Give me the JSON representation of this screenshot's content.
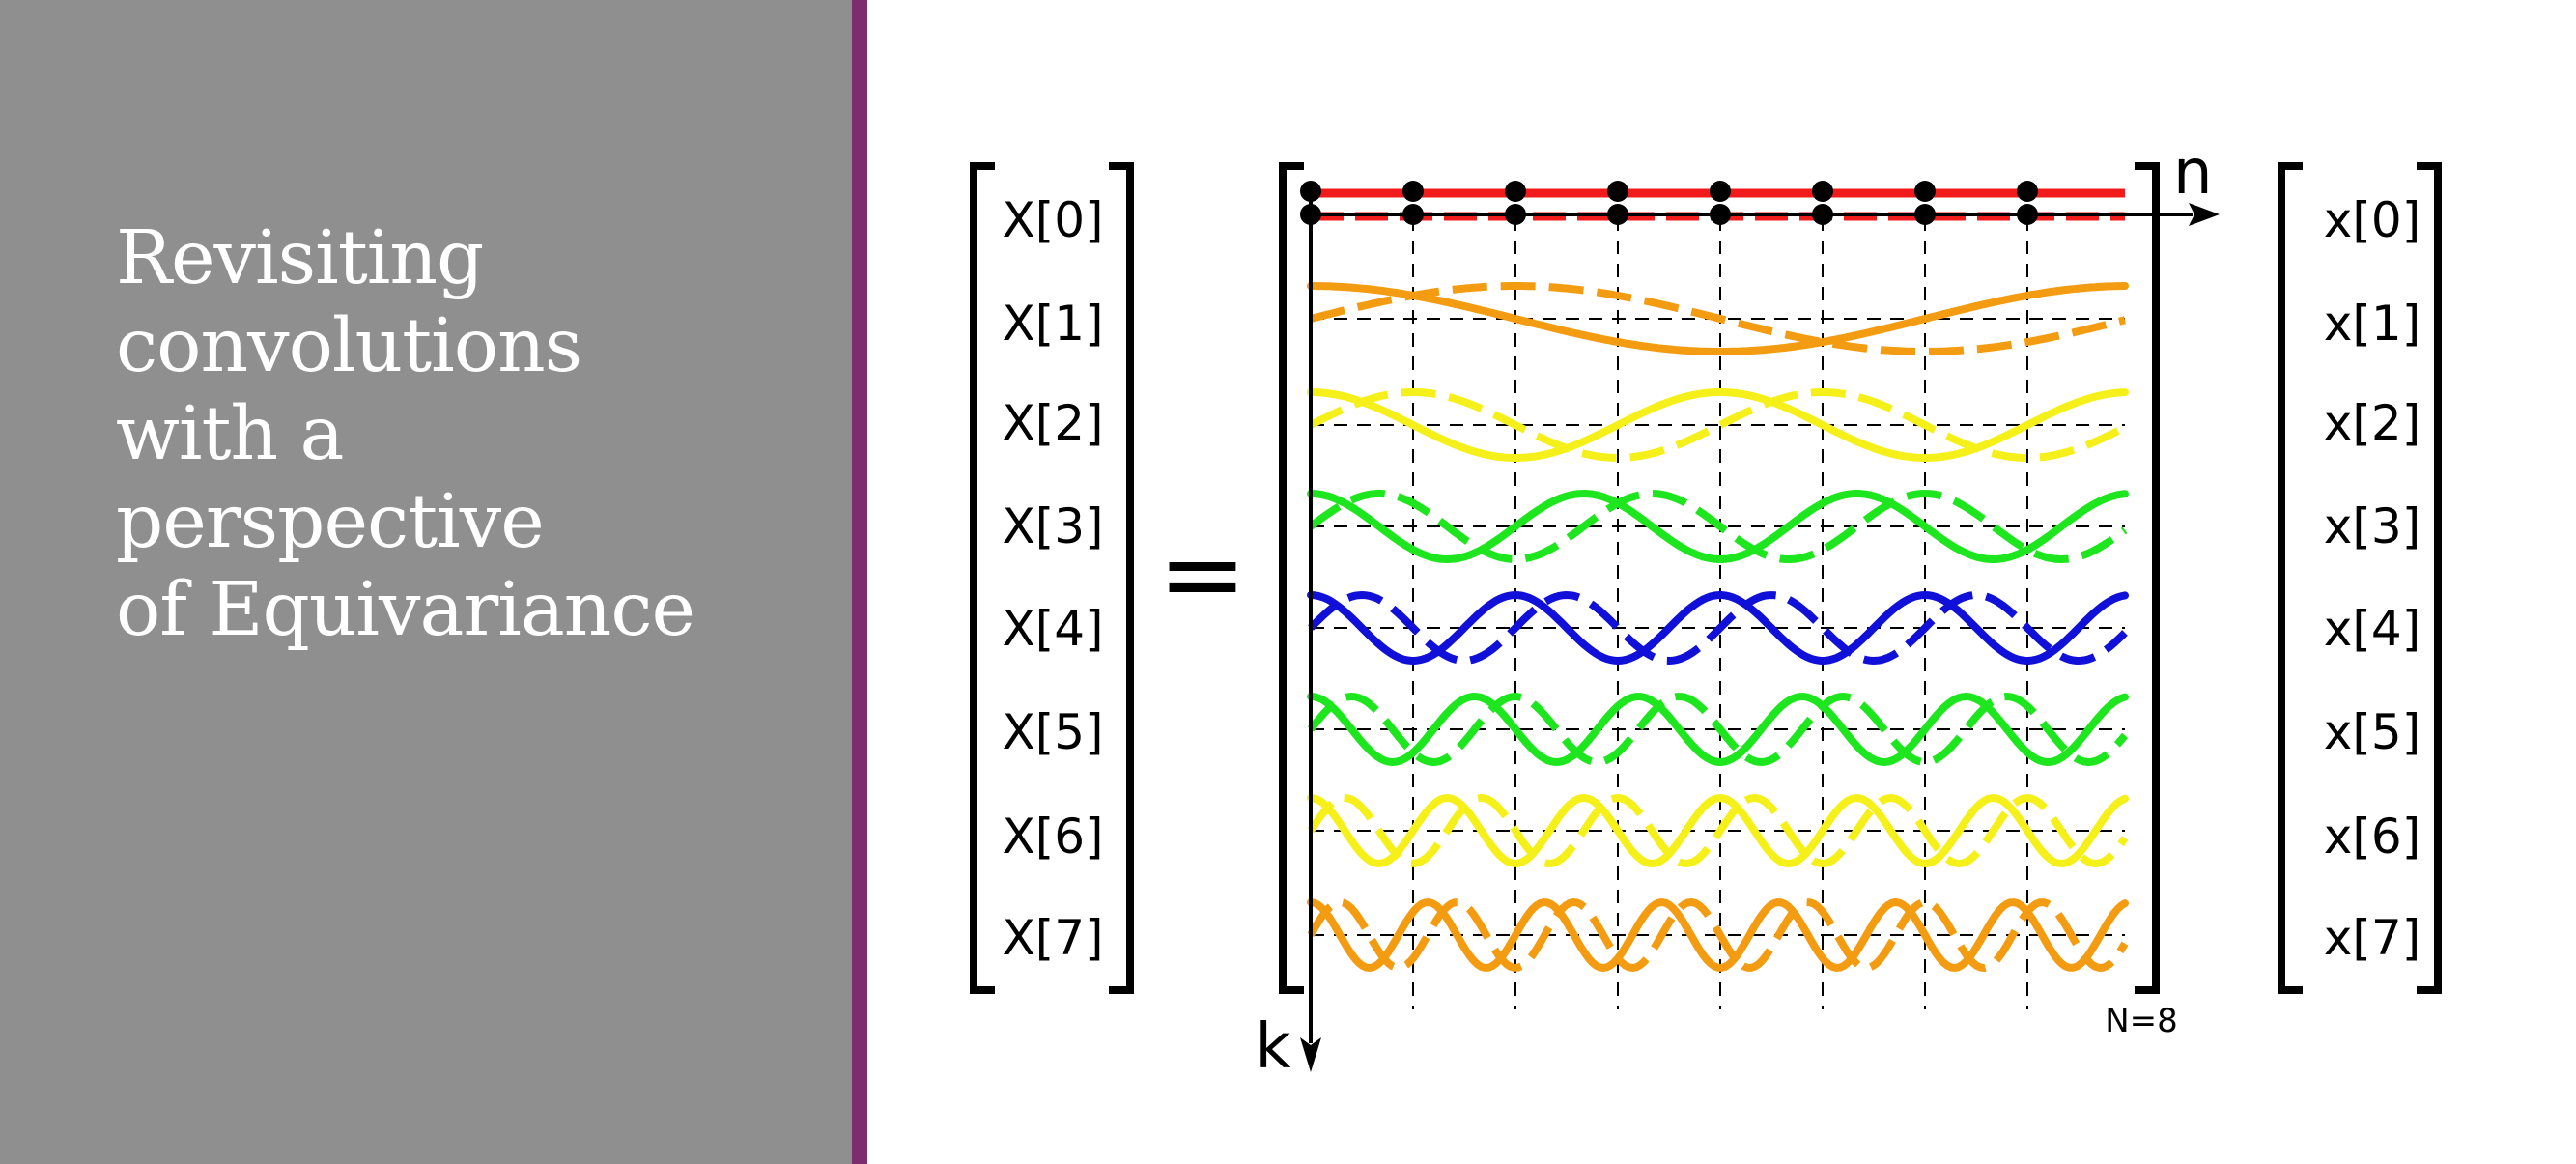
{
  "slide": {
    "title_lines": [
      "Revisiting",
      "convolutions",
      "with a",
      "perspective",
      "of Equivariance"
    ],
    "panel_color": "#8f8f8f",
    "accent_color": "#7b2d6e"
  },
  "figure": {
    "output_labels": [
      "X[0]",
      "X[1]",
      "X[2]",
      "X[3]",
      "X[4]",
      "X[5]",
      "X[6]",
      "X[7]"
    ],
    "input_labels": [
      "x[0]",
      "x[1]",
      "x[2]",
      "x[3]",
      "x[4]",
      "x[5]",
      "x[6]",
      "x[7]"
    ],
    "equals_sign": "=",
    "n_axis_label": "n",
    "k_axis_label": "k",
    "size_note": "N=8",
    "N": 8,
    "row_colors": [
      "#f21b1b",
      "#f39c12",
      "#f5f019",
      "#1ee61e",
      "#1010d8",
      "#1ee61e",
      "#f5f019",
      "#f39c12"
    ],
    "line_styles": {
      "real_part": "solid",
      "imaginary_part": "dashed"
    }
  }
}
